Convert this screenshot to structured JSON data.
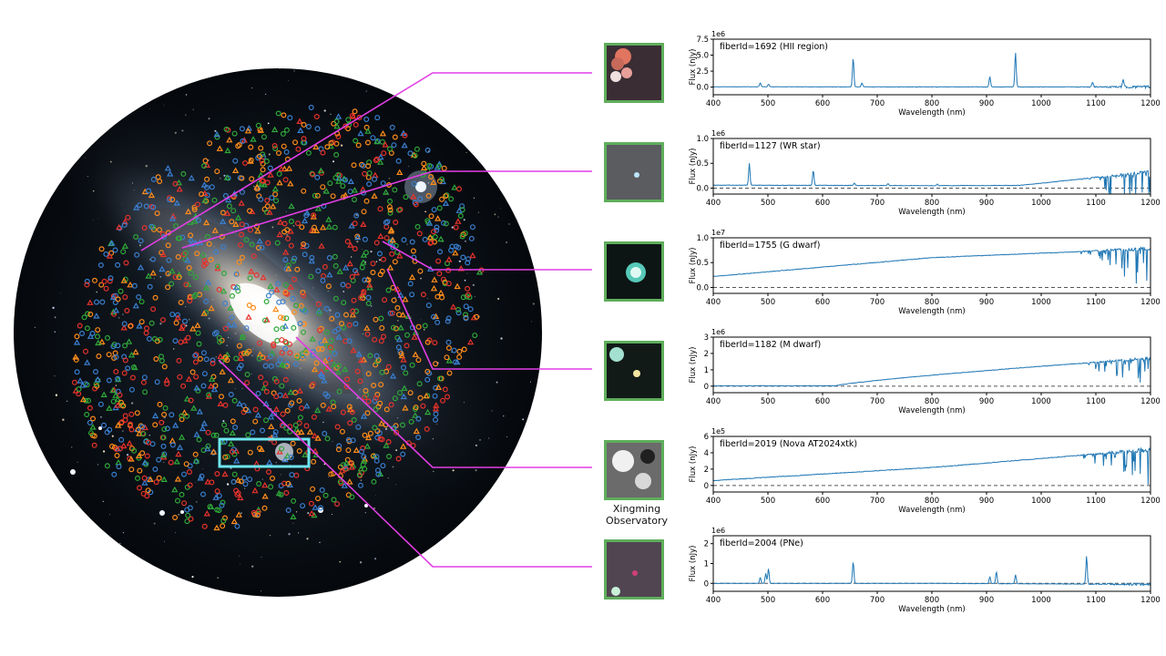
{
  "colors": {
    "connector": "#e23ee5",
    "thumb_frame": "#5fae5b",
    "highlight_box": "#6fe6ef",
    "line": "#1f77b4",
    "marker_red": "#e8322b",
    "marker_orange": "#ff8c1a",
    "marker_green": "#2fa83a",
    "marker_blue": "#3a7fd0"
  },
  "thumbnail_caption": "Xingming Observatory",
  "chart_data": [
    {
      "type": "line",
      "title": "fiberId=1692 (HII region)",
      "xlabel": "Wavelength (nm)",
      "ylabel": "Flux (nJy)",
      "offset_text": "1e6",
      "xlim": [
        400,
        1200
      ],
      "ylim": [
        -1.2,
        7.5
      ],
      "xticks": [
        400,
        500,
        600,
        700,
        800,
        900,
        1000,
        1100,
        1200
      ],
      "yticks": [
        0.0,
        2.5,
        5.0,
        7.5
      ],
      "ytick_labels": [
        "0.0",
        "2.5",
        "5.0",
        "7.5"
      ],
      "zero_line": false,
      "profile": "emission",
      "base": [
        0.05,
        0.03,
        0.02
      ],
      "noise": 0.06,
      "peaks": [
        [
          486,
          0.6
        ],
        [
          501,
          0.4
        ],
        [
          656,
          4.5
        ],
        [
          672,
          0.6
        ],
        [
          906,
          1.6
        ],
        [
          953,
          5.4
        ],
        [
          1094,
          0.8
        ],
        [
          1150,
          1.2
        ]
      ]
    },
    {
      "type": "line",
      "title": "fiberId=1127 (WR star)",
      "xlabel": "Wavelength (nm)",
      "ylabel": "Flux (nJy)",
      "offset_text": "1e6",
      "xlim": [
        400,
        1200
      ],
      "ylim": [
        -0.12,
        1.0
      ],
      "xticks": [
        400,
        500,
        600,
        700,
        800,
        900,
        1000,
        1100,
        1200
      ],
      "yticks": [
        0.0,
        0.5,
        1.0
      ],
      "ytick_labels": [
        "0.0",
        "0.5",
        "1.0"
      ],
      "zero_line": true,
      "profile": "wr",
      "base": [
        0.06,
        0.05,
        0.06
      ],
      "noise": 0.01,
      "peaks": [
        [
          466,
          0.44
        ],
        [
          583,
          0.3
        ],
        [
          658,
          0.05
        ],
        [
          720,
          0.04
        ],
        [
          810,
          0.03
        ]
      ]
    },
    {
      "type": "line",
      "title": "fiberId=1755 (G dwarf)",
      "xlabel": "Wavelength (nm)",
      "ylabel": "Flux (nJy)",
      "offset_text": "1e7",
      "xlim": [
        400,
        1200
      ],
      "ylim": [
        -0.12,
        1.0
      ],
      "xticks": [
        400,
        500,
        600,
        700,
        800,
        900,
        1000,
        1100,
        1200
      ],
      "yticks": [
        0.0,
        0.5,
        1.0
      ],
      "ytick_labels": [
        "0.0",
        "0.5",
        "1.0"
      ],
      "zero_line": true,
      "profile": "continuum",
      "base": [
        0.22,
        0.6,
        0.78
      ],
      "noise": 0.012,
      "peaks": []
    },
    {
      "type": "line",
      "title": "fiberId=1182 (M dwarf)",
      "xlabel": "Wavelength (nm)",
      "ylabel": "Flux (nJy)",
      "offset_text": "1e6",
      "xlim": [
        400,
        1200
      ],
      "ylim": [
        -0.4,
        3.0
      ],
      "xticks": [
        400,
        500,
        600,
        700,
        800,
        900,
        1000,
        1100,
        1200
      ],
      "yticks": [
        0,
        1,
        2,
        3
      ],
      "ytick_labels": [
        "0",
        "1",
        "2",
        "3"
      ],
      "zero_line": true,
      "profile": "mdwarf",
      "base": [
        0.02,
        0.1,
        1.7
      ],
      "noise": 0.03,
      "peaks": []
    },
    {
      "type": "line",
      "title": "fiberId=2019 (Nova AT2024xtk)",
      "xlabel": "Wavelength (nm)",
      "ylabel": "Flux (nJy)",
      "offset_text": "1e5",
      "xlim": [
        400,
        1200
      ],
      "ylim": [
        -0.8,
        6.0
      ],
      "xticks": [
        400,
        500,
        600,
        700,
        800,
        900,
        1000,
        1100,
        1200
      ],
      "yticks": [
        0,
        2,
        4,
        6
      ],
      "ytick_labels": [
        "0",
        "2",
        "4",
        "6"
      ],
      "zero_line": true,
      "profile": "continuum",
      "base": [
        0.6,
        2.2,
        4.4
      ],
      "noise": 0.08,
      "peaks": []
    },
    {
      "type": "line",
      "title": "fiberId=2004 (PNe)",
      "xlabel": "Wavelength (nm)",
      "ylabel": "Flux (nJy)",
      "offset_text": "1e6",
      "xlim": [
        400,
        1200
      ],
      "ylim": [
        -0.4,
        2.4
      ],
      "xticks": [
        400,
        500,
        600,
        700,
        800,
        900,
        1000,
        1100,
        1200
      ],
      "yticks": [
        0,
        1,
        2
      ],
      "ytick_labels": [
        "0",
        "1",
        "2"
      ],
      "zero_line": true,
      "profile": "emission",
      "base": [
        0.0,
        0.0,
        -0.05
      ],
      "noise": 0.02,
      "peaks": [
        [
          486,
          0.3
        ],
        [
          496,
          0.5
        ],
        [
          501,
          0.75
        ],
        [
          656,
          1.1
        ],
        [
          906,
          0.35
        ],
        [
          918,
          0.6
        ],
        [
          953,
          0.45
        ],
        [
          1083,
          1.4
        ]
      ]
    }
  ]
}
